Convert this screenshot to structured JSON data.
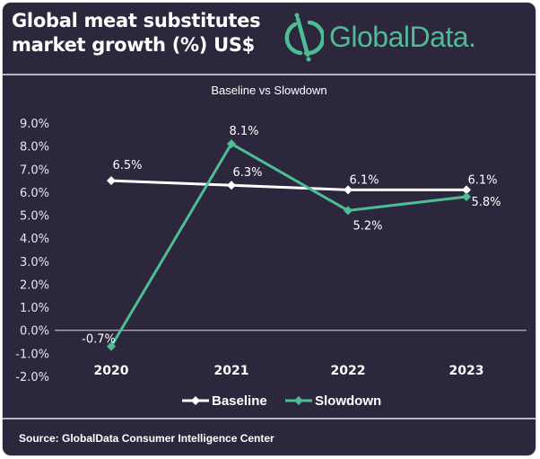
{
  "header": {
    "title": "Global meat substitutes market growth (%) US$",
    "brand": "GlobalData."
  },
  "colors": {
    "background": "#2c273d",
    "baseline": "#ffffff",
    "slowdown": "#4dbd95",
    "brand": "#4dbd95"
  },
  "footer": {
    "source": "Source: GlobalData Consumer Intelligence Center"
  },
  "chart_data": {
    "type": "line",
    "title": "Baseline vs Slowdown",
    "xlabel": "",
    "ylabel": "",
    "categories": [
      "2020",
      "2021",
      "2022",
      "2023"
    ],
    "ylim": [
      -2.0,
      9.0
    ],
    "yticks": [
      "9.0%",
      "8.0%",
      "7.0%",
      "6.0%",
      "5.0%",
      "4.0%",
      "3.0%",
      "2.0%",
      "1.0%",
      "0.0%",
      "-1.0%",
      "-2.0%"
    ],
    "grid": false,
    "legend": "bottom",
    "series": [
      {
        "name": "Baseline",
        "values": [
          6.5,
          6.3,
          6.1,
          6.1
        ],
        "labels": [
          "6.5%",
          "6.3%",
          "6.1%",
          "6.1%"
        ]
      },
      {
        "name": "Slowdown",
        "values": [
          -0.7,
          8.1,
          5.2,
          5.8
        ],
        "labels": [
          "-0.7%",
          "8.1%",
          "5.2%",
          "5.8%"
        ]
      }
    ]
  }
}
